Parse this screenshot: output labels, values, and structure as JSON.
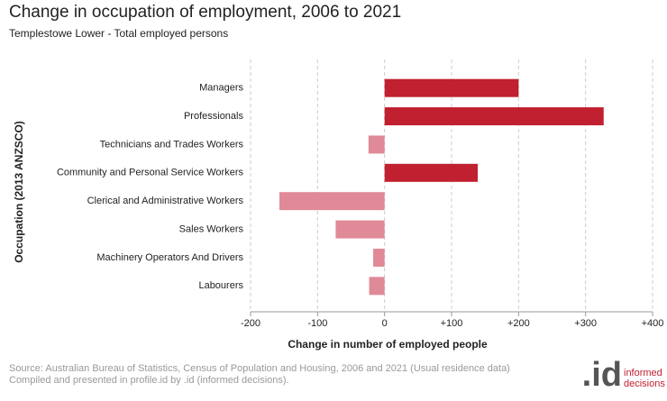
{
  "chart_data": {
    "type": "bar",
    "orientation": "horizontal",
    "title": "Change in occupation of employment, 2006 to 2021",
    "subtitle": "Templestowe Lower - Total employed persons",
    "x_label": "Change in number of employed people",
    "y_label": "Occupation (2013 ANZSCO)",
    "categories": [
      "Managers",
      "Professionals",
      "Technicians and Trades Workers",
      "Community and Personal Service Workers",
      "Clerical and Administrative Workers",
      "Sales Workers",
      "Machinery Operators And Drivers",
      "Labourers"
    ],
    "values": [
      200,
      327,
      -24,
      139,
      -157,
      -73,
      -17,
      -23
    ],
    "color_positive": "#c0202f",
    "color_negative": "#e08a97",
    "xlim": [
      -200,
      400
    ],
    "xticks": [
      -200,
      -100,
      0,
      {
        "value": 100,
        "label": "+100"
      },
      {
        "value": 200,
        "label": "+200"
      },
      {
        "value": 300,
        "label": "+300"
      },
      {
        "value": 400,
        "label": "+400"
      }
    ],
    "grid": true,
    "source": [
      "Source: Australian Bureau of Statistics, Census of Population and Housing, 2006 and 2021 (Usual residence data)",
      "Compiled and presented in profile.id by .id (informed decisions)."
    ],
    "logo": {
      "mark": ".id",
      "words": [
        "informed",
        "decisions"
      ]
    }
  }
}
